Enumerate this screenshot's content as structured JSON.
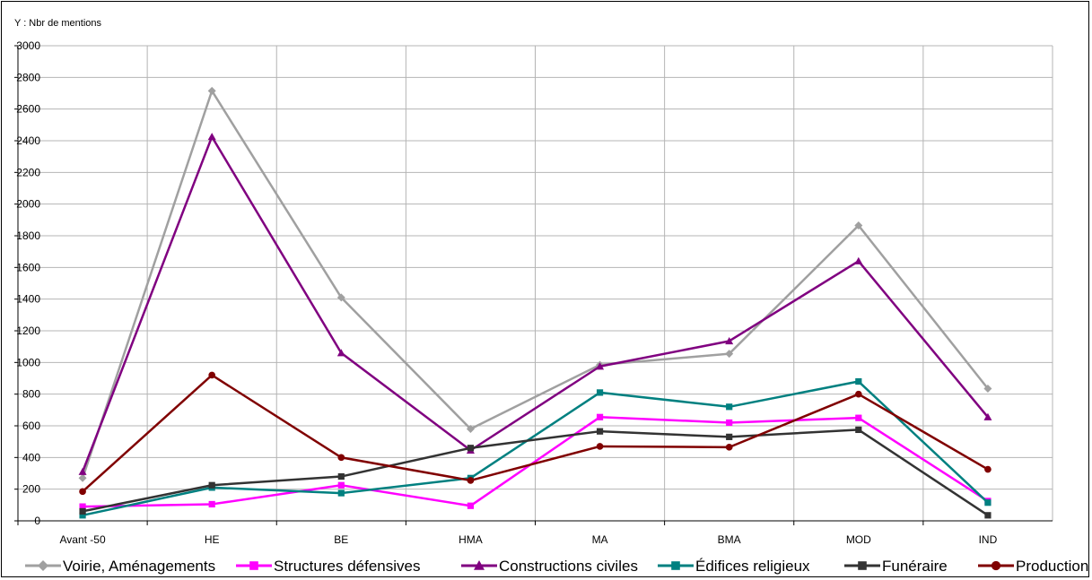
{
  "chart_data": {
    "type": "line",
    "title": "",
    "xlabel": "",
    "ylabel": "Y : Nbr de mentions",
    "ylim": [
      0,
      3000
    ],
    "ytick_step": 200,
    "grid": true,
    "legend_position": "bottom",
    "categories": [
      "Avant -50",
      "HE",
      "BE",
      "HMA",
      "MA",
      "BMA",
      "MOD",
      "IND"
    ],
    "series": [
      {
        "name": "Voirie, Aménagements",
        "color": "#a0a0a0",
        "marker": "diamond",
        "values": [
          270,
          2715,
          1410,
          580,
          985,
          1055,
          1865,
          835
        ]
      },
      {
        "name": "Structures défensives",
        "color": "#ff00ff",
        "marker": "square",
        "values": [
          90,
          105,
          225,
          95,
          655,
          620,
          650,
          125
        ]
      },
      {
        "name": "Constructions civiles",
        "color": "#800080",
        "marker": "triangle",
        "values": [
          310,
          2425,
          1060,
          445,
          975,
          1135,
          1640,
          655
        ]
      },
      {
        "name": "Édifices religieux",
        "color": "#008080",
        "marker": "square",
        "values": [
          35,
          210,
          175,
          270,
          810,
          720,
          880,
          115
        ]
      },
      {
        "name": "Funéraire",
        "color": "#333333",
        "marker": "square",
        "values": [
          60,
          225,
          280,
          460,
          565,
          530,
          575,
          35
        ]
      },
      {
        "name": "Production",
        "color": "#800000",
        "marker": "circle",
        "values": [
          185,
          920,
          400,
          255,
          470,
          465,
          800,
          325
        ]
      }
    ]
  }
}
